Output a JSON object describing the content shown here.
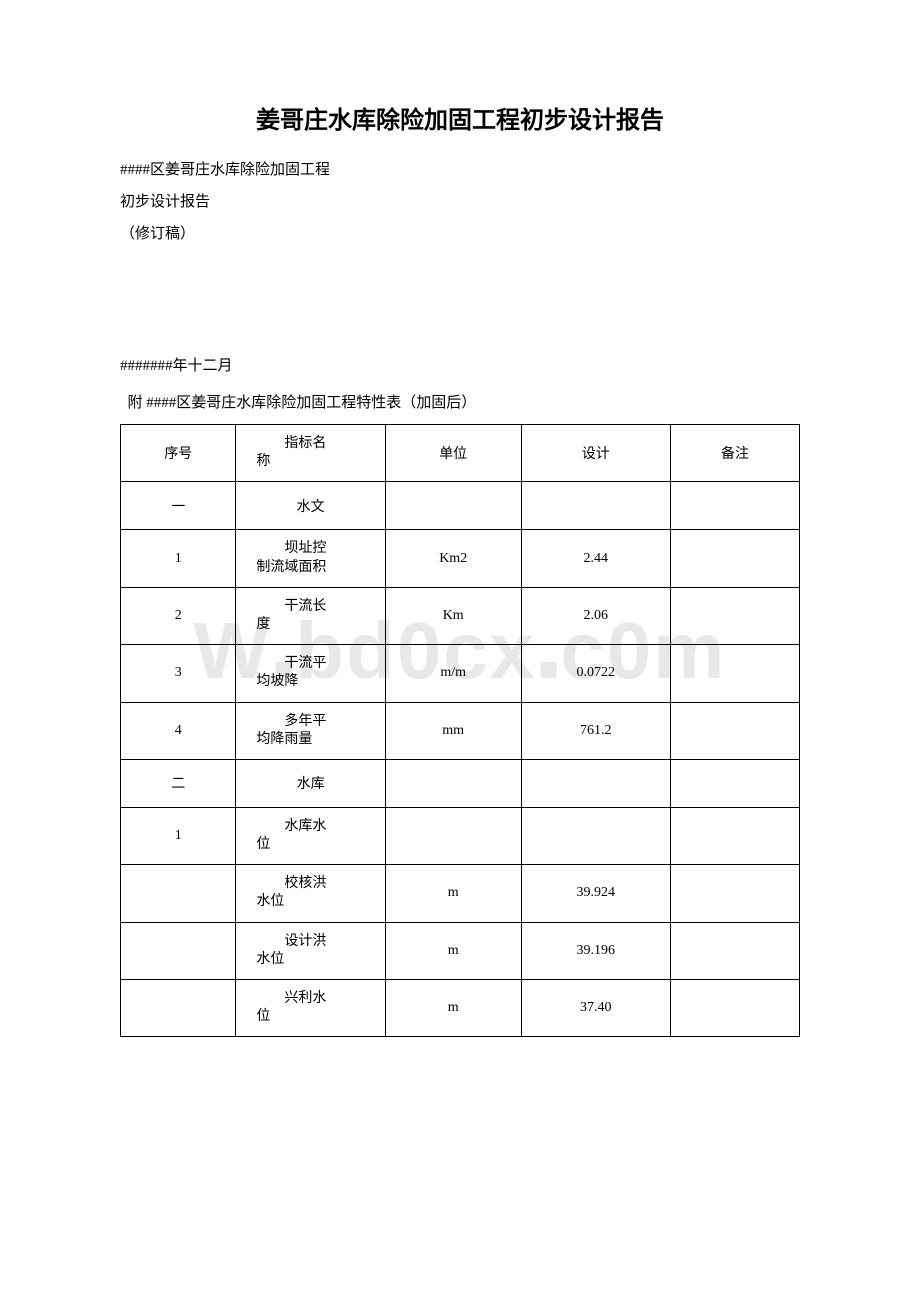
{
  "watermark": "W . bd0cx . c0m",
  "title": "姜哥庄水库除险加固工程初步设计报告",
  "meta": {
    "line1": "####区姜哥庄水库除险加固工程",
    "line2": "初步设计报告",
    "line3": "（修订稿）",
    "line4": "#######年十二月"
  },
  "caption": "附 ####区姜哥庄水库除险加固工程特性表（加固后）",
  "headers": {
    "seq": "序号",
    "name_l1": "指标名",
    "name_l2": "称",
    "unit": "单位",
    "design": "设计",
    "note": "备注"
  },
  "rows": [
    {
      "seq": "一",
      "name_l1": "水文",
      "name_l2": "",
      "unit": "",
      "design": "",
      "note": "",
      "center": true
    },
    {
      "seq": "1",
      "name_l1": "坝址控",
      "name_l2": "制流域面积",
      "unit": "Km2",
      "design": "2.44",
      "note": ""
    },
    {
      "seq": "2",
      "name_l1": "干流长",
      "name_l2": "度",
      "unit": "Km",
      "design": "2.06",
      "note": ""
    },
    {
      "seq": "3",
      "name_l1": "干流平",
      "name_l2": "均坡降",
      "unit": "m/m",
      "design": "0.0722",
      "note": ""
    },
    {
      "seq": "4",
      "name_l1": "多年平",
      "name_l2": "均降雨量",
      "unit": "mm",
      "design": "761.2",
      "note": ""
    },
    {
      "seq": "二",
      "name_l1": "水库",
      "name_l2": "",
      "unit": "",
      "design": "",
      "note": "",
      "center": true
    },
    {
      "seq": "1",
      "name_l1": "水库水",
      "name_l2": "位",
      "unit": "",
      "design": "",
      "note": ""
    },
    {
      "seq": "",
      "name_l1": "校核洪",
      "name_l2": "水位",
      "unit": "m",
      "design": "39.924",
      "note": ""
    },
    {
      "seq": "",
      "name_l1": "设计洪",
      "name_l2": "水位",
      "unit": "m",
      "design": "39.196",
      "note": ""
    },
    {
      "seq": "",
      "name_l1": "兴利水",
      "name_l2": "位",
      "unit": "m",
      "design": "37.40",
      "note": ""
    }
  ],
  "colors": {
    "text": "#000000",
    "border": "#000000",
    "background": "#ffffff",
    "watermark": "#e8e8e8"
  },
  "fonts": {
    "title_size": 24,
    "body_size": 15,
    "table_size": 14
  }
}
